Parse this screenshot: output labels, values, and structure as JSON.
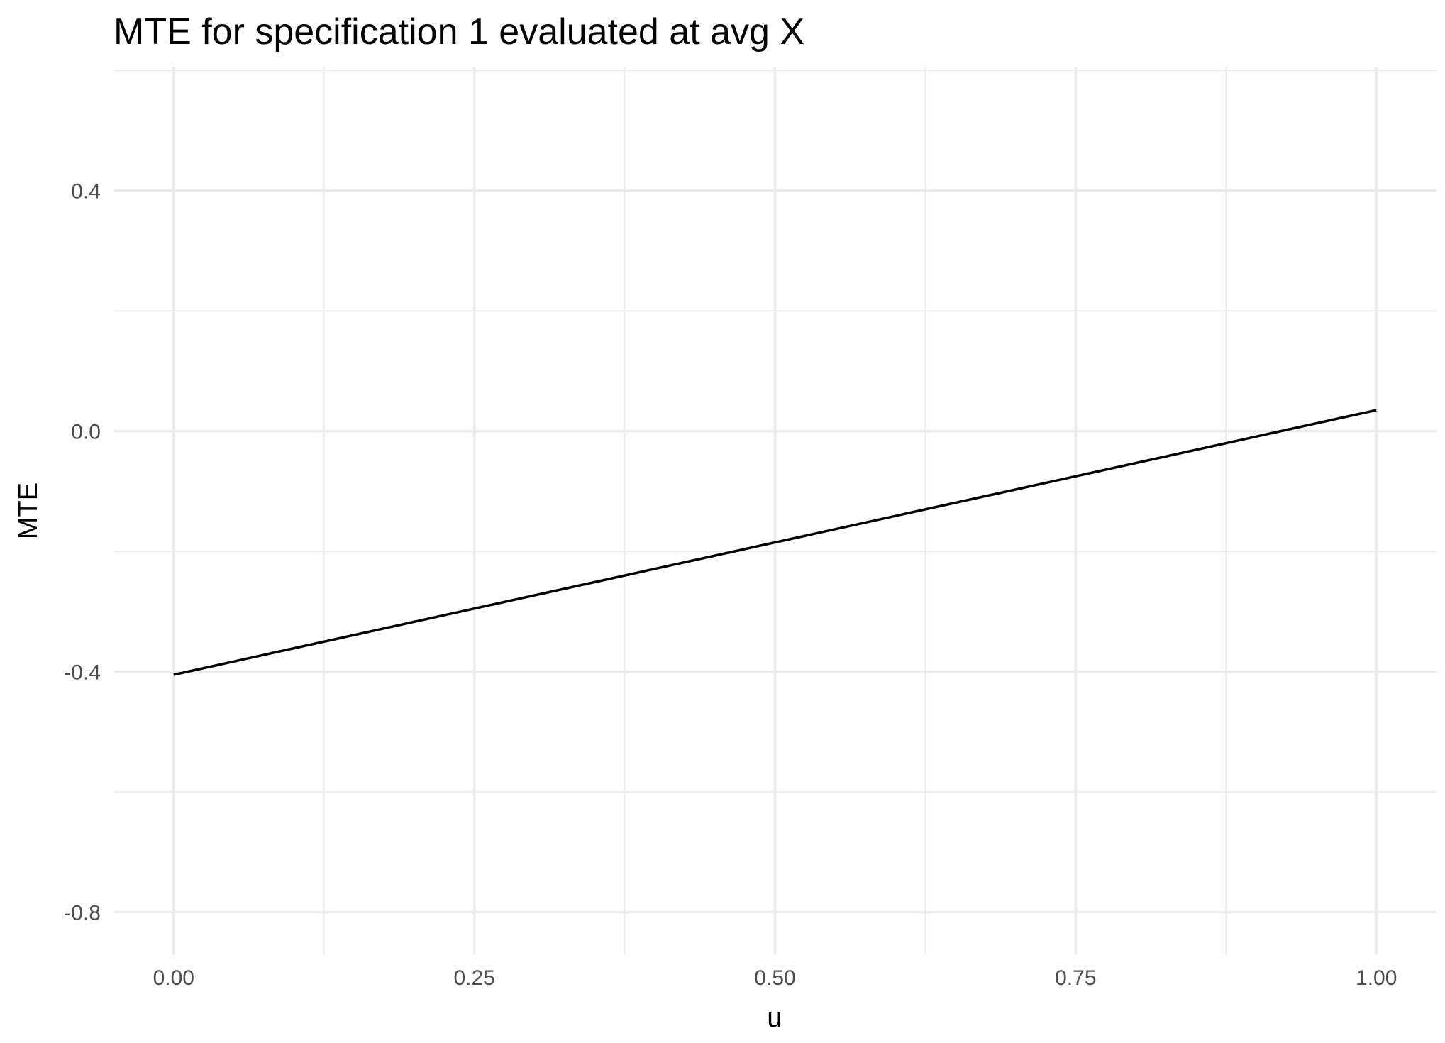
{
  "chart_data": {
    "type": "line",
    "title": "MTE for specification 1 evaluated at avg X",
    "xlabel": "u",
    "ylabel": "MTE",
    "xlim": [
      -0.05,
      1.05
    ],
    "ylim": [
      -0.87,
      0.605
    ],
    "x_ticks": [
      0.0,
      0.25,
      0.5,
      0.75,
      1.0
    ],
    "x_tick_labels": [
      "0.00",
      "0.25",
      "0.50",
      "0.75",
      "1.00"
    ],
    "x_minor_ticks": [
      0.125,
      0.375,
      0.625,
      0.875
    ],
    "y_ticks": [
      -0.8,
      -0.4,
      0.0,
      0.4
    ],
    "y_tick_labels": [
      "-0.8",
      "-0.4",
      "0.0",
      "0.4"
    ],
    "y_minor_ticks": [
      -0.6,
      -0.2,
      0.2,
      0.6
    ],
    "grid": true,
    "legend": "none",
    "series": [
      {
        "color": "#000000",
        "x": [
          0.0,
          1.0
        ],
        "y": [
          -0.405,
          0.035
        ]
      }
    ]
  }
}
